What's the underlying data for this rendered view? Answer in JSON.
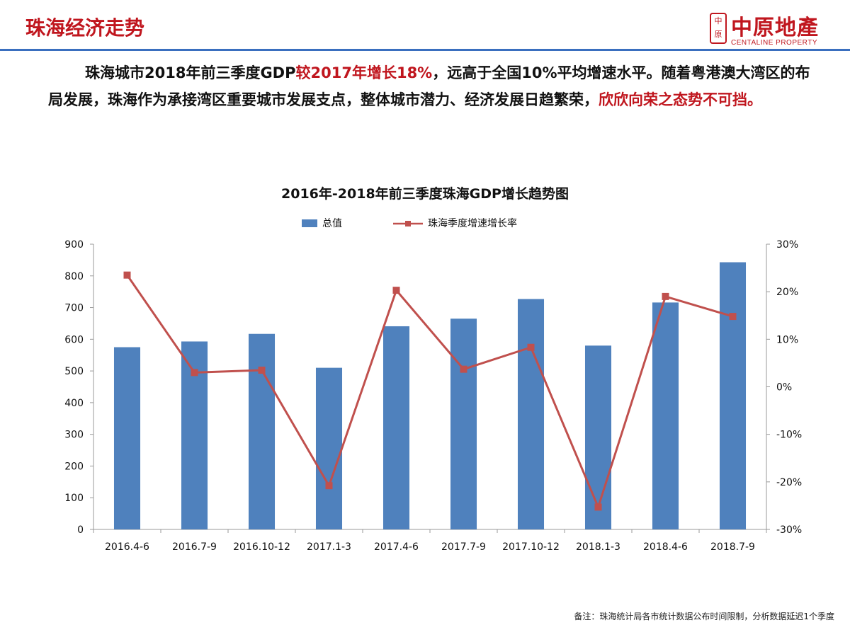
{
  "header": {
    "title": "珠海经济走势",
    "logo_cn": "中原地產",
    "logo_en": "CENTALINE PROPERTY",
    "logo_mark": "中原"
  },
  "intro": {
    "part1": "珠海城市2018年前三季度GDP",
    "part2_highlight": "较2017年增长18%",
    "part3": "，远高于全国10%平均增速水平。随着粤港澳大湾区的布局发展，珠海作为承接湾区重要城市发展支点，整体城市潜力、经济发展日趋繁荣，",
    "part4_highlight": "欣欣向荣之态势不可挡。"
  },
  "footnote": "备注：珠海统计局各市统计数据公布时间限制，分析数据延迟1个季度",
  "colors": {
    "accent_red": "#c0161e",
    "bar_blue": "#4f81bd",
    "line_red": "#c0504d",
    "rule_blue": "#3a6fbf"
  },
  "chart_data": {
    "type": "bar",
    "title": "2016年-2018年前三季度珠海GDP增长趋势图",
    "categories": [
      "2016.4-6",
      "2016.7-9",
      "2016.10-12",
      "2017.1-3",
      "2017.4-6",
      "2017.7-9",
      "2017.10-12",
      "2018.1-3",
      "2018.4-6",
      "2018.7-9"
    ],
    "series": [
      {
        "name": "总值",
        "type": "bar",
        "axis": "left",
        "values": [
          575,
          593,
          617,
          510,
          641,
          665,
          727,
          580,
          716,
          843
        ]
      },
      {
        "name": "珠海季度增速增长率",
        "type": "line",
        "axis": "right",
        "values": [
          23.5,
          3.0,
          3.5,
          -20.8,
          20.3,
          3.7,
          8.3,
          -25.3,
          19.0,
          14.8
        ]
      }
    ],
    "y_left": {
      "min": 0,
      "max": 900,
      "ticks": [
        0,
        100,
        200,
        300,
        400,
        500,
        600,
        700,
        800,
        900
      ]
    },
    "y_right": {
      "min": -30,
      "max": 30,
      "ticks": [
        "-30%",
        "-20%",
        "-10%",
        "0%",
        "10%",
        "20%",
        "30%"
      ]
    },
    "legend_position": "top",
    "grid": false
  }
}
